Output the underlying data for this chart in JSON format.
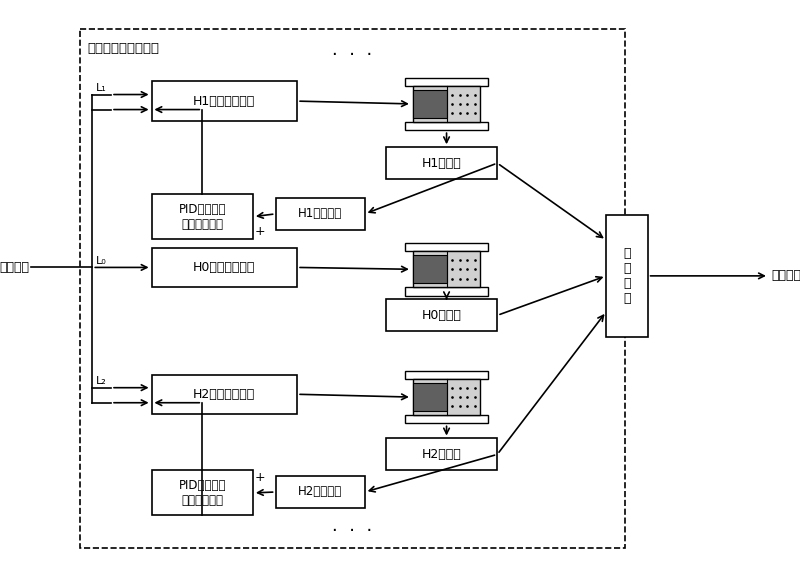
{
  "title": "多油缸协调控制系统",
  "left_label": "指令位移",
  "right_label": "斜盘姿态",
  "L1": "L₁",
  "L0": "L₀",
  "L2": "L₂",
  "H1_servo": "H1液压伺服系统",
  "H0_servo": "H0液压伺服系统",
  "H2_servo": "H2液压伺服系统",
  "H1_grating": "H1光栅尺",
  "H0_grating": "H0光栅尺",
  "H2_grating": "H2光栅尺",
  "H1_pid": "PID协调控制\n偏差补偿网络",
  "H2_pid": "PID协调控制\n偏差补偿网络",
  "H1_bias": "H1偏差因子",
  "H2_bias": "H2偏差因子",
  "swashplate": "旋\n转\n斜\n盘",
  "dots": "···"
}
